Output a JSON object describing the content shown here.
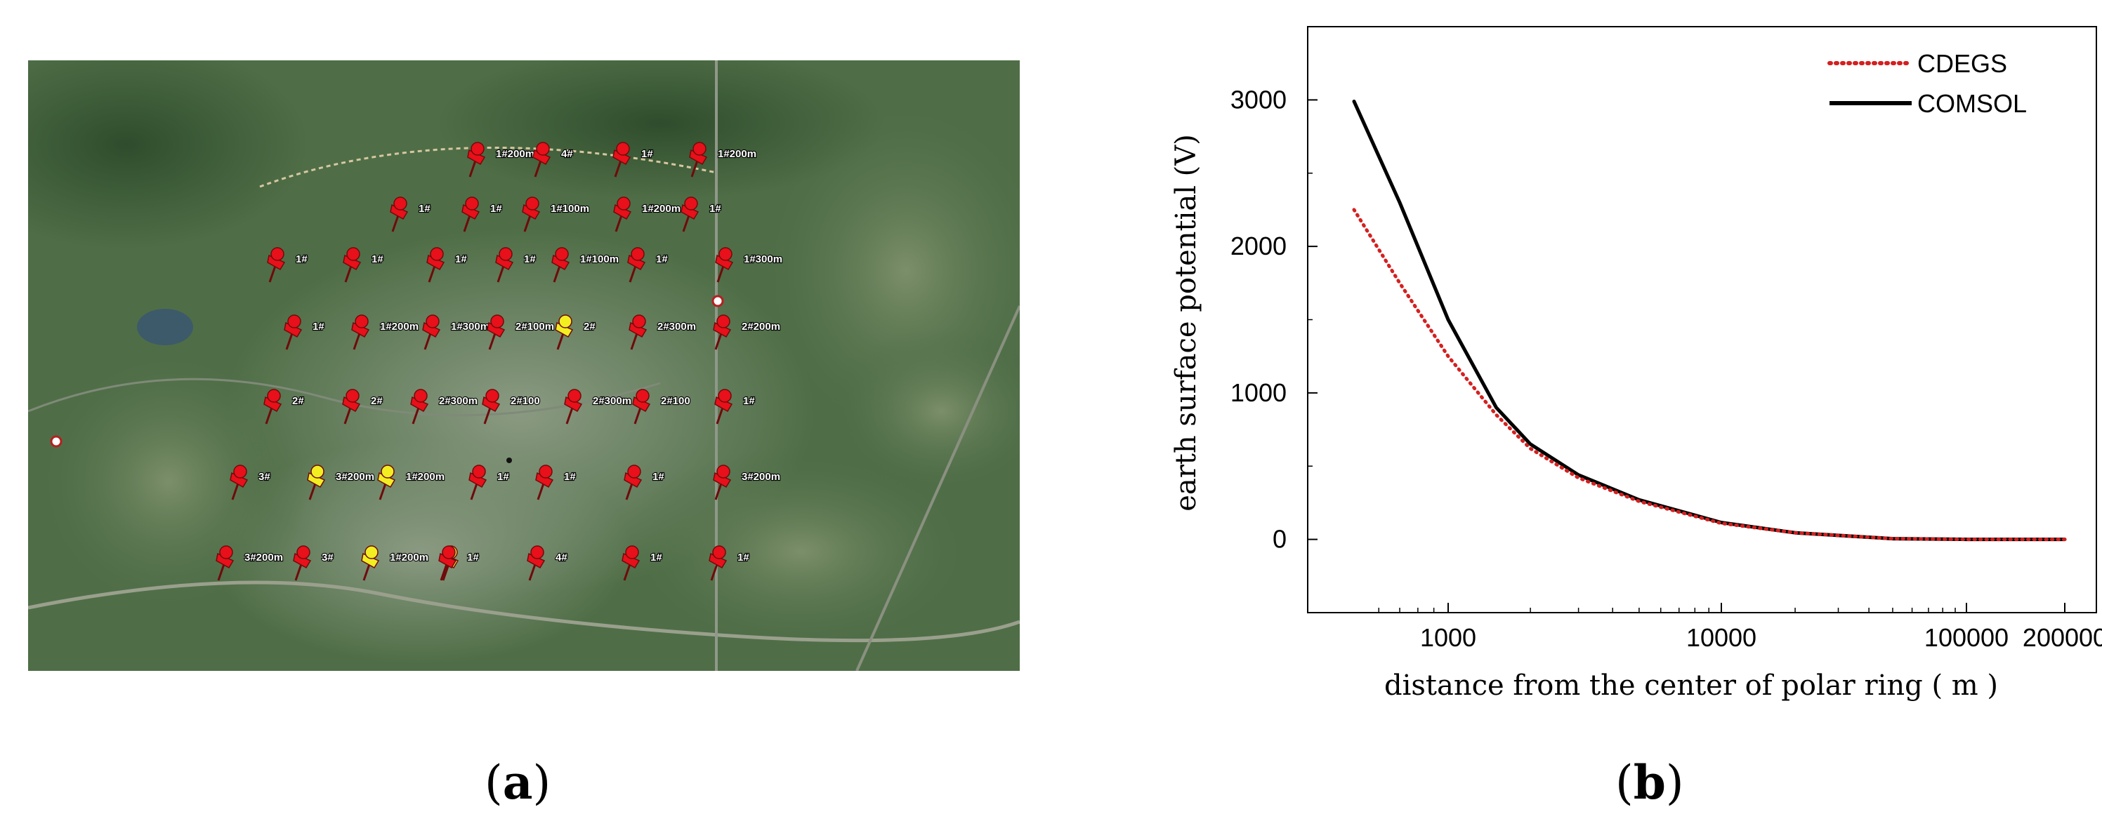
{
  "captions": {
    "a_open": "(",
    "a_letter": "a",
    "a_close": ")",
    "b_open": "(",
    "b_letter": "b",
    "b_close": ")"
  },
  "map": {
    "colors": {
      "base": "#4a6b45",
      "marker_red": "#e8101a",
      "marker_yellow": "#f2ee22"
    },
    "markers": [
      {
        "label": "1#200m",
        "color": "red"
      },
      {
        "label": "4#",
        "color": "red"
      },
      {
        "label": "1#",
        "color": "red"
      },
      {
        "label": "1#200m",
        "color": "red"
      },
      {
        "label": "1#",
        "color": "red"
      },
      {
        "label": "1#",
        "color": "red"
      },
      {
        "label": "1#100m",
        "color": "red"
      },
      {
        "label": "1#200m",
        "color": "red"
      },
      {
        "label": "1#",
        "color": "red"
      },
      {
        "label": "1#",
        "color": "red"
      },
      {
        "label": "1#",
        "color": "red"
      },
      {
        "label": "1#",
        "color": "red"
      },
      {
        "label": "1#",
        "color": "red"
      },
      {
        "label": "1#100m",
        "color": "red"
      },
      {
        "label": "1#",
        "color": "red"
      },
      {
        "label": "1#300m",
        "color": "red"
      },
      {
        "label": "1#",
        "color": "red"
      },
      {
        "label": "1#200m",
        "color": "red"
      },
      {
        "label": "1#300m",
        "color": "red"
      },
      {
        "label": "2#100m",
        "color": "red"
      },
      {
        "label": "2#",
        "color": "yellow"
      },
      {
        "label": "2#300m",
        "color": "red"
      },
      {
        "label": "2#200m",
        "color": "red"
      },
      {
        "label": "2#",
        "color": "red"
      },
      {
        "label": "2#",
        "color": "red"
      },
      {
        "label": "2#300m",
        "color": "red"
      },
      {
        "label": "2#100",
        "color": "red"
      },
      {
        "label": "2#300m",
        "color": "red"
      },
      {
        "label": "2#100",
        "color": "red"
      },
      {
        "label": "1#",
        "color": "red"
      },
      {
        "label": "3#",
        "color": "red"
      },
      {
        "label": "3#200m",
        "color": "yellow"
      },
      {
        "label": "1#200m",
        "color": "yellow"
      },
      {
        "label": "1#",
        "color": "red"
      },
      {
        "label": "1#",
        "color": "red"
      },
      {
        "label": "1#",
        "color": "red"
      },
      {
        "label": "3#200m",
        "color": "red"
      },
      {
        "label": "3#200m",
        "color": "red"
      },
      {
        "label": "3#",
        "color": "red"
      },
      {
        "label": "",
        "color": "yellow"
      },
      {
        "label": "1#200m",
        "color": "yellow"
      },
      {
        "label": "1#",
        "color": "red"
      },
      {
        "label": "4#",
        "color": "red"
      },
      {
        "label": "1#",
        "color": "red"
      },
      {
        "label": "1#",
        "color": "red"
      }
    ]
  },
  "chart_data": {
    "type": "line",
    "title": "",
    "xlabel": "distance from the center of polar ring ( m )",
    "ylabel": "earth surface potential (V)",
    "xticks": [
      "1000",
      "10000",
      "100000",
      "200000"
    ],
    "yticks": [
      "0",
      "1000",
      "2000",
      "3000"
    ],
    "ylim": [
      -500,
      3500
    ],
    "x_scale": "log (compressed at upper end)",
    "grid": false,
    "legend_position": "top-right",
    "series": [
      {
        "name": "CDEGS",
        "color": "#d42020",
        "style": "dotted",
        "x": [
          500,
          700,
          1000,
          1500,
          2000,
          3000,
          5000,
          10000,
          20000,
          50000,
          100000,
          200000
        ],
        "y": [
          2250,
          1750,
          1250,
          850,
          620,
          420,
          260,
          110,
          45,
          5,
          0,
          0
        ]
      },
      {
        "name": "COMSOL",
        "color": "#000000",
        "style": "solid",
        "x": [
          500,
          700,
          1000,
          1500,
          2000,
          3000,
          5000,
          10000,
          20000,
          50000,
          100000,
          200000
        ],
        "y": [
          2990,
          2300,
          1500,
          900,
          650,
          440,
          270,
          115,
          45,
          5,
          0,
          0
        ]
      }
    ]
  }
}
